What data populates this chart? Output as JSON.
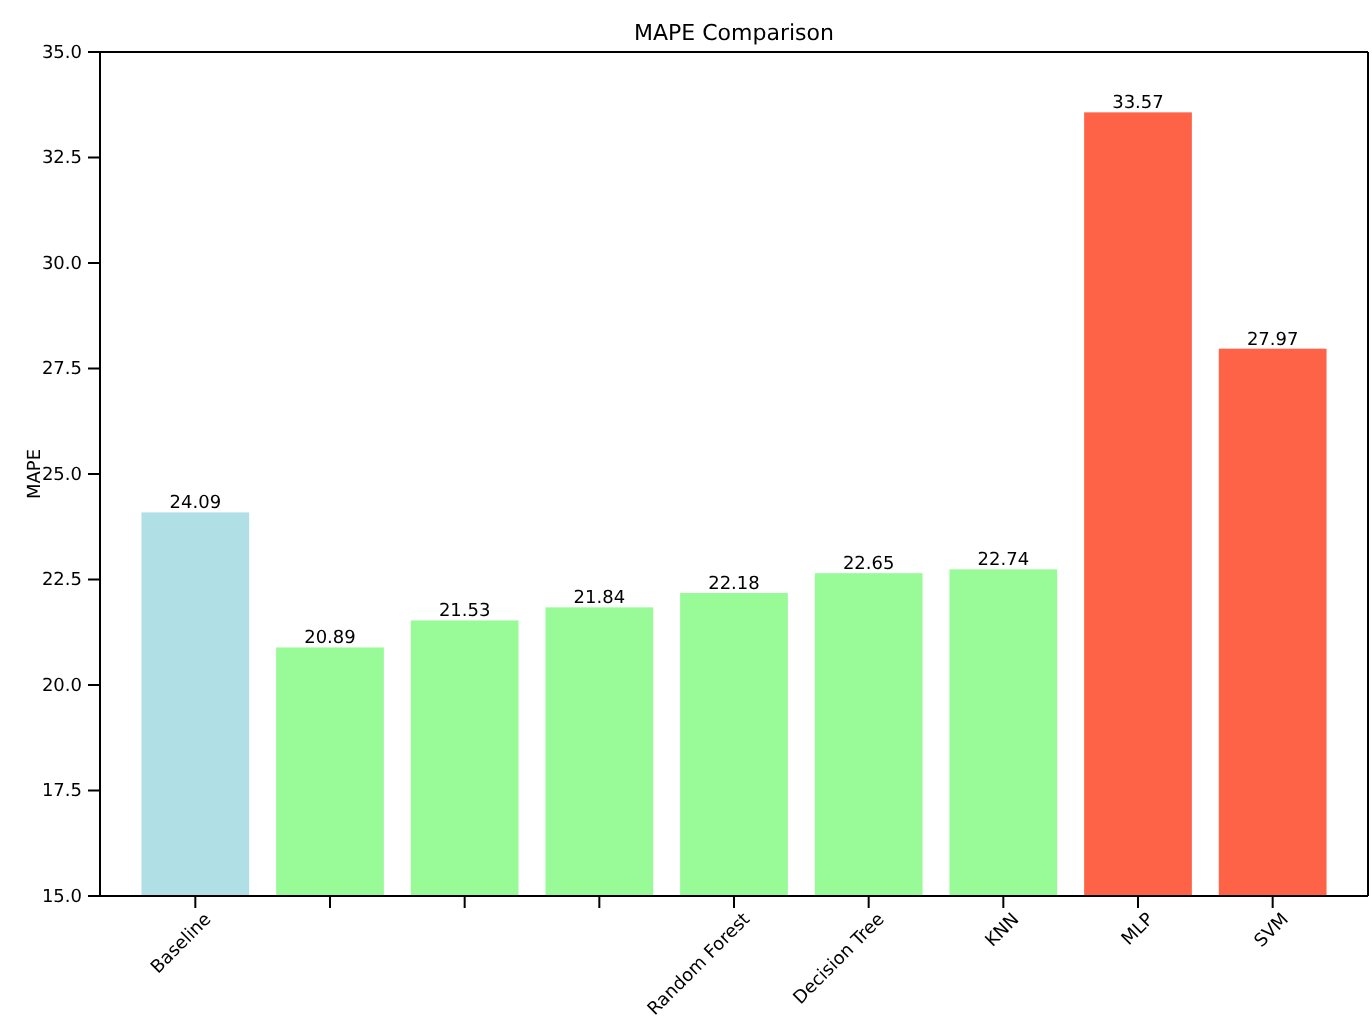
{
  "chart_data": {
    "type": "bar",
    "title": "MAPE Comparison",
    "ylabel": "MAPE",
    "categories": [
      "Baseline",
      null,
      null,
      null,
      "Random Forest",
      "Decision Tree",
      "KNN",
      "MLP",
      "SVM"
    ],
    "values": [
      24.09,
      20.89,
      21.53,
      21.84,
      22.18,
      22.65,
      22.74,
      33.57,
      27.97
    ],
    "colors": [
      "#b0e0e6",
      "#98fb98",
      "#98fb98",
      "#98fb98",
      "#98fb98",
      "#98fb98",
      "#98fb98",
      "#ff6347",
      "#ff6347"
    ],
    "ylim": [
      15,
      35
    ],
    "yticks": [
      {
        "value": 15,
        "label": "15.0"
      },
      {
        "value": 17.5,
        "label": "17.5"
      },
      {
        "value": 20,
        "label": "20.0"
      },
      {
        "value": 22.5,
        "label": "22.5"
      },
      {
        "value": 25,
        "label": "25.0"
      },
      {
        "value": 27.5,
        "label": "27.5"
      },
      {
        "value": 30,
        "label": "30.0"
      },
      {
        "value": 32.5,
        "label": "32.5"
      },
      {
        "value": 35,
        "label": "35.0"
      }
    ],
    "data_labels": true
  }
}
